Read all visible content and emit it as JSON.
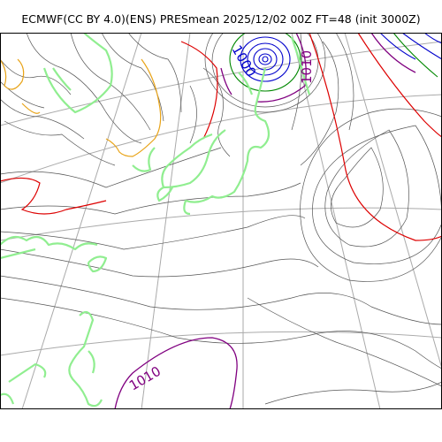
{
  "title": "ECMWF(CC BY 4.0)(ENS) PRESmean 2025/12/02 00Z FT=48 (init 3000Z)",
  "isobar_labels": [
    {
      "text": "1000",
      "color": "#0000cc"
    },
    {
      "text": "1010",
      "color": "#800080"
    },
    {
      "text": "1010",
      "color": "#800080"
    }
  ],
  "colors": {
    "isobar_thin": "#555555",
    "isobar_1012": "#dd0000",
    "isobar_1010": "#800080",
    "isobar_1000": "#0000cc",
    "isobar_1004": "#008800",
    "coastline": "#90ee90",
    "topo_1500": "#e8a317",
    "graticule": "#aaaaaa"
  }
}
